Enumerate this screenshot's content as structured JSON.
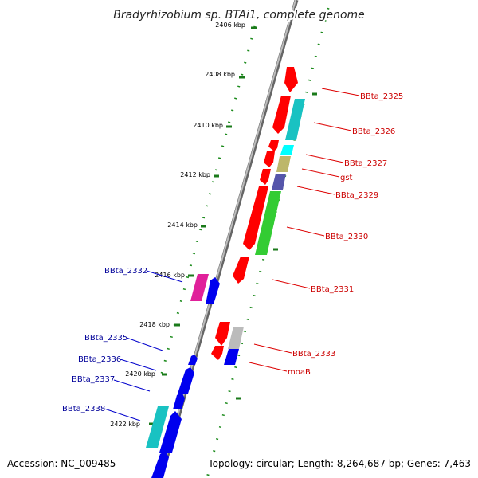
{
  "title": "Bradyrhizobium sp. BTAi1, complete genome",
  "footer": {
    "accession": "Accession: NC_009485",
    "summary": "Topology: circular; Length: 8,264,687 bp; Genes: 7,463"
  },
  "ticks": [
    "2406 kbp",
    "2408 kbp",
    "2410 kbp",
    "2412 kbp",
    "2414 kbp",
    "2416 kbp",
    "2418 kbp",
    "2420 kbp",
    "2422 kbp"
  ],
  "genes_right": [
    "BBta_2325",
    "BBta_2326",
    "BBta_2327",
    "gst",
    "BBta_2329",
    "BBta_2330",
    "BBta_2331",
    "BBta_2333",
    "moaB"
  ],
  "genes_left": [
    "BBta_2332",
    "BBta_2335",
    "BBta_2336",
    "BBta_2337",
    "BBta_2338"
  ],
  "colors": {
    "forward_label": "#cc0000",
    "reverse_label": "#000099",
    "dots": "#1a7a1a",
    "backbone": "#999999"
  }
}
